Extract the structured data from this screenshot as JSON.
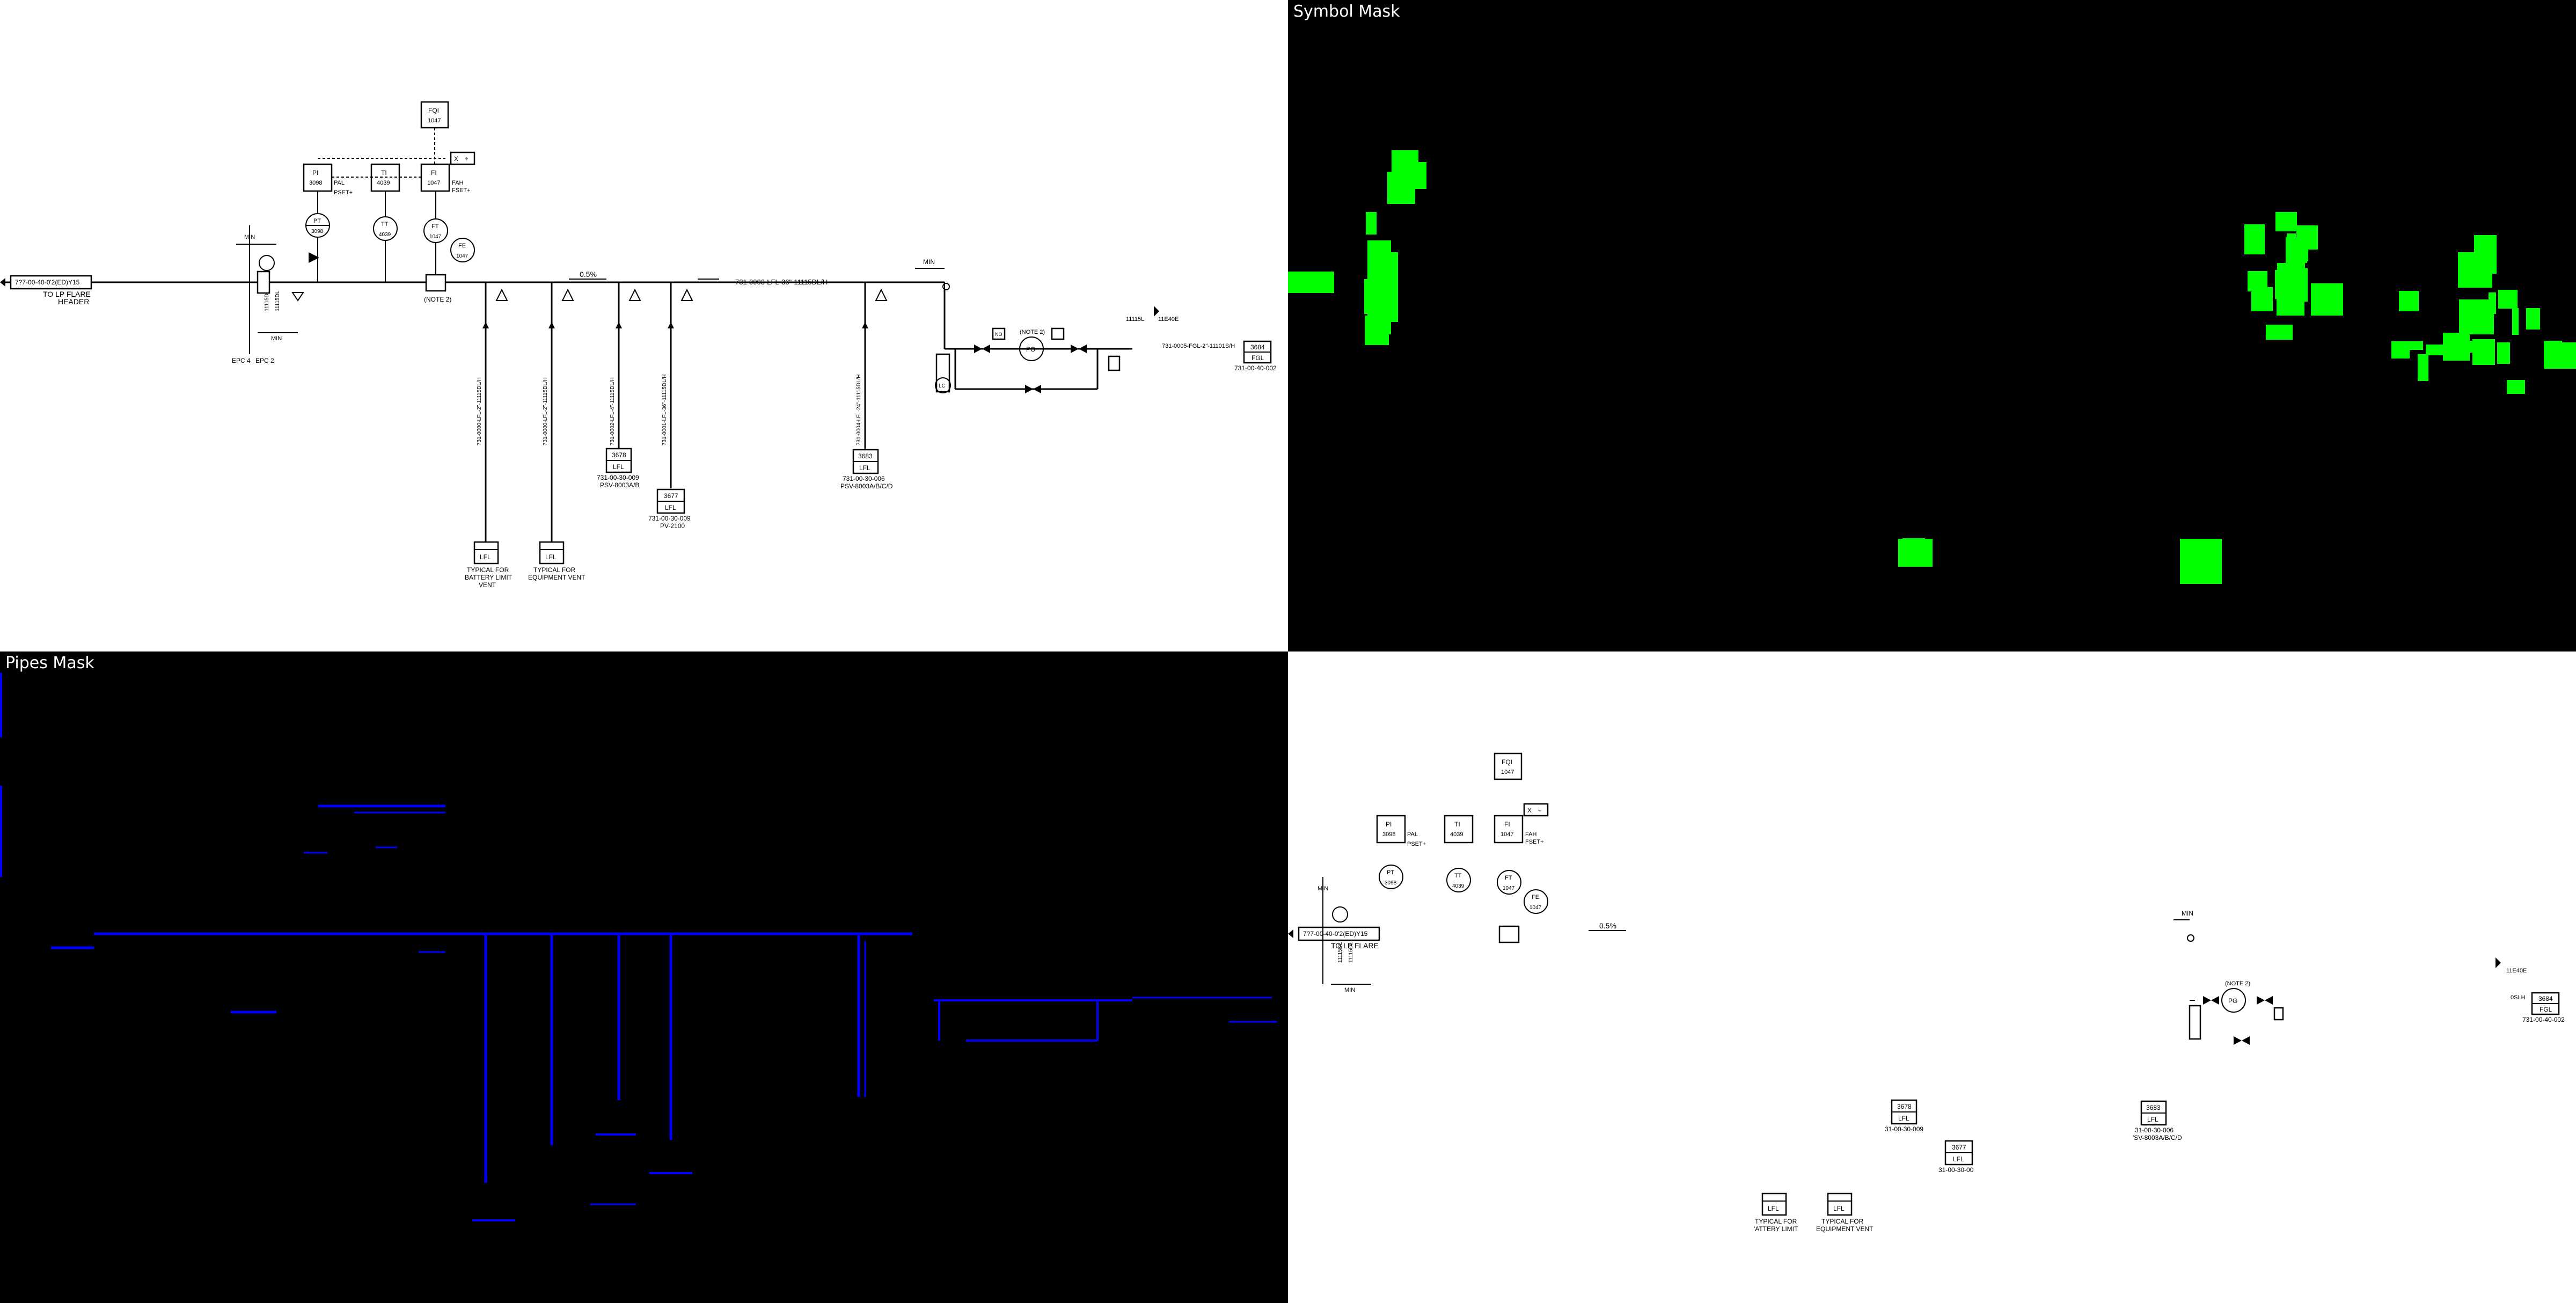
{
  "colors": {
    "symbol": "#00ff00",
    "pipe": "#0000ff",
    "panel": "#000000",
    "paper": "#ffffff"
  },
  "panels": {
    "symbol_title": "Symbol Mask",
    "pipes_title": "Pipes Mask"
  },
  "drawing": {
    "header_line": "7?7-00-40-0'2(ED)Y15",
    "header_label": "TO LP FLARE",
    "header_label2": "HEADER",
    "epc4": "EPC 4",
    "epc2": "EPC 2",
    "min": "MIN",
    "note2": "(NOTE 2)",
    "note2_pg": "(NOTE 2)",
    "slope": "0.5%",
    "main_line": "731-0003-LFL-36\"-11115DL/H",
    "fqi": {
      "tag": "FQI",
      "num": "1047"
    },
    "pi": {
      "tag": "PI",
      "num": "3098",
      "alarm": "PAL",
      "alarm2": "PSET+"
    },
    "ti": {
      "tag": "TI",
      "num": "4039"
    },
    "fi": {
      "tag": "FI",
      "num": "1047",
      "alarm": "FAH",
      "alarm2": "FSET+"
    },
    "pt": {
      "tag": "PT",
      "num": "3098"
    },
    "tt": {
      "tag": "TT",
      "num": "4039"
    },
    "ft": {
      "tag": "FT",
      "num": "1047"
    },
    "fe": {
      "tag": "FE",
      "num": "1047"
    },
    "xd": [
      "X",
      "÷"
    ],
    "spec_left": "11115DL",
    "spec_left2": "11115DL",
    "verticals": [
      "731-0000-LFL-2\"-11115DL/H",
      "731-0000-LFL-2\"-11115DL/H",
      "731-0002-LFL-4\"-11115DL/H",
      "731-0001-LFL-36\"-11115DL/H",
      "731-0004-LFL-24\"-11115DL/H"
    ],
    "lfl_3678": {
      "num": "3678",
      "label": "LFL",
      "ref": "731-00-30-009",
      "psv": "PSV-8003A/B"
    },
    "lfl_3677": {
      "num": "3677",
      "label": "LFL",
      "ref": "731-00-30-009",
      "psv": "PV-2100"
    },
    "lfl_3683": {
      "num": "3683",
      "label": "LFL",
      "ref": "731-00-30-006",
      "psv": "PSV-8003A/B/C/D"
    },
    "lfl_battery": {
      "label": "LFL",
      "note1": "TYPICAL FOR",
      "note2": "BATTERY LIMIT",
      "note3": "VENT"
    },
    "lfl_equipment": {
      "label": "LFL",
      "note1": "TYPICAL FOR",
      "note2": "EQUIPMENT VENT"
    },
    "pg": "PG",
    "lc": "LC",
    "no": "NO",
    "fgl": {
      "num": "3684",
      "label": "FGL",
      "ref": "731-00-40-002"
    },
    "fgl_line": "731-0005-FGL-2\"-11101S/H",
    "spec_right": "11115L",
    "spec_right2": "11E40E",
    "min_right": "MIN"
  },
  "partial": {
    "header_line": "7?7-00-40-0'2(ED)Y15",
    "header_label": "TO LP FLARE",
    "lfl_3678_ref": "31-00-30-009",
    "lfl_3677_ref": "31-00-30-00",
    "lfl_3683_ref": "31-00-30-006",
    "lfl_3683_psv": "'SV-8003A/B/C/D",
    "battery_note1": "TYPICAL FOR",
    "battery_note2": "'ATTERY LIMIT",
    "equipment_note1": "TYPICAL FOR",
    "equipment_note2": "EQUIPMENT VENT",
    "fgl_ref": "731-00-40-002",
    "pg_note": "(NOTE 2)",
    "spec_right2": "11E40E",
    "fgl_spec": "0SLH"
  }
}
